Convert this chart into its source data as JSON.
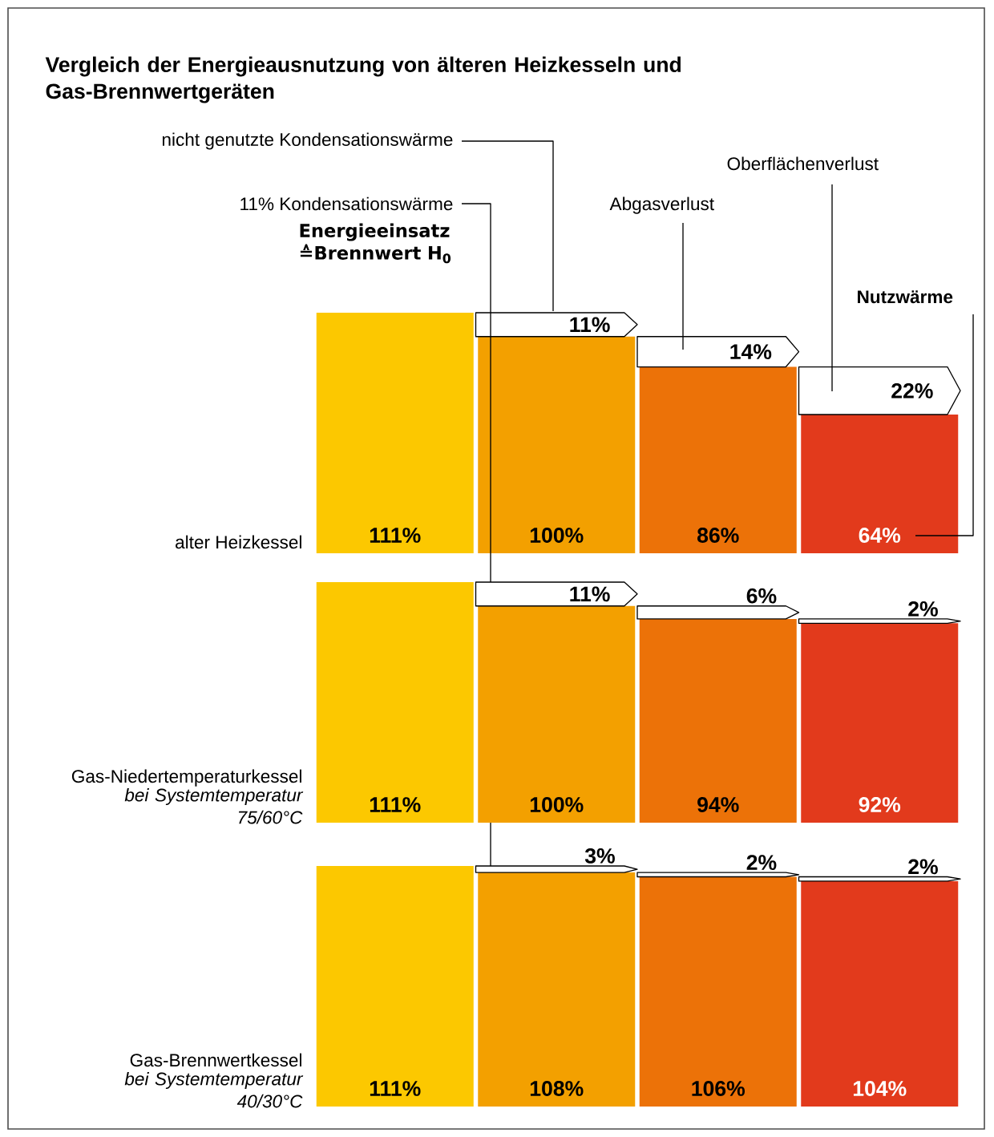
{
  "chart_data": [
    {
      "type": "bar",
      "stacked": true,
      "title": "Vergleich der Energieausnutzung von älteren Heizkesseln und Gas-Brennwertgeräten",
      "xlabel": "alter Heizkessel",
      "categories": [
        null,
        null,
        null,
        null
      ],
      "series": [
        {
          "colors": [
            "#fcc800",
            "#f3a000",
            "#ec7208",
            "#e23a1c"
          ],
          "values": [
            111,
            100,
            86,
            64
          ],
          "value_labels": [
            "111%",
            "100%",
            "86%",
            "64%"
          ]
        },
        {
          "color": "#ffffff",
          "values": [
            null,
            11,
            14,
            22
          ],
          "value_labels": [
            null,
            "11%",
            "14%",
            "22%"
          ]
        }
      ],
      "annotations": [
        "nicht genutzte Kondensationswärme",
        "11% Kondensationswärme",
        "Abgasverlust",
        "Oberflächenverlust",
        "Nutzwärme",
        "Energieeinsatz ≙Brennwert H$_{0}$"
      ]
    },
    {
      "type": "bar",
      "stacked": true,
      "xlabel": "Gas-Niedertemperaturkessel",
      "categories": [
        null,
        null,
        null,
        null
      ],
      "series": [
        {
          "colors": [
            "#fcc800",
            "#f3a000",
            "#ec7208",
            "#e23a1c"
          ],
          "values": [
            111,
            100,
            94,
            92
          ],
          "value_labels": [
            "111%",
            "100%",
            "94%",
            "92%"
          ]
        },
        {
          "color": "#ffffff",
          "values": [
            null,
            11,
            6,
            2
          ],
          "value_labels": [
            null,
            "11%",
            "6%",
            "2%"
          ]
        }
      ],
      "annotations": [
        "bei Systemtemperatur 75/60°C"
      ]
    },
    {
      "type": "bar",
      "stacked": true,
      "xlabel": "Gas-Brennwertkessel",
      "categories": [
        null,
        null,
        null,
        null
      ],
      "series": [
        {
          "colors": [
            "#fcc800",
            "#f3a000",
            "#ec7208",
            "#e23a1c"
          ],
          "values": [
            111,
            108,
            106,
            104
          ],
          "value_labels": [
            "111%",
            "108%",
            "106%",
            "104%"
          ]
        },
        {
          "color": "#ffffff",
          "values": [
            null,
            3,
            2,
            2
          ],
          "value_labels": [
            null,
            "3%",
            "2%",
            "2%"
          ]
        }
      ],
      "annotations": [
        "bei Systemtemperatur 40/30°C"
      ]
    }
  ]
}
